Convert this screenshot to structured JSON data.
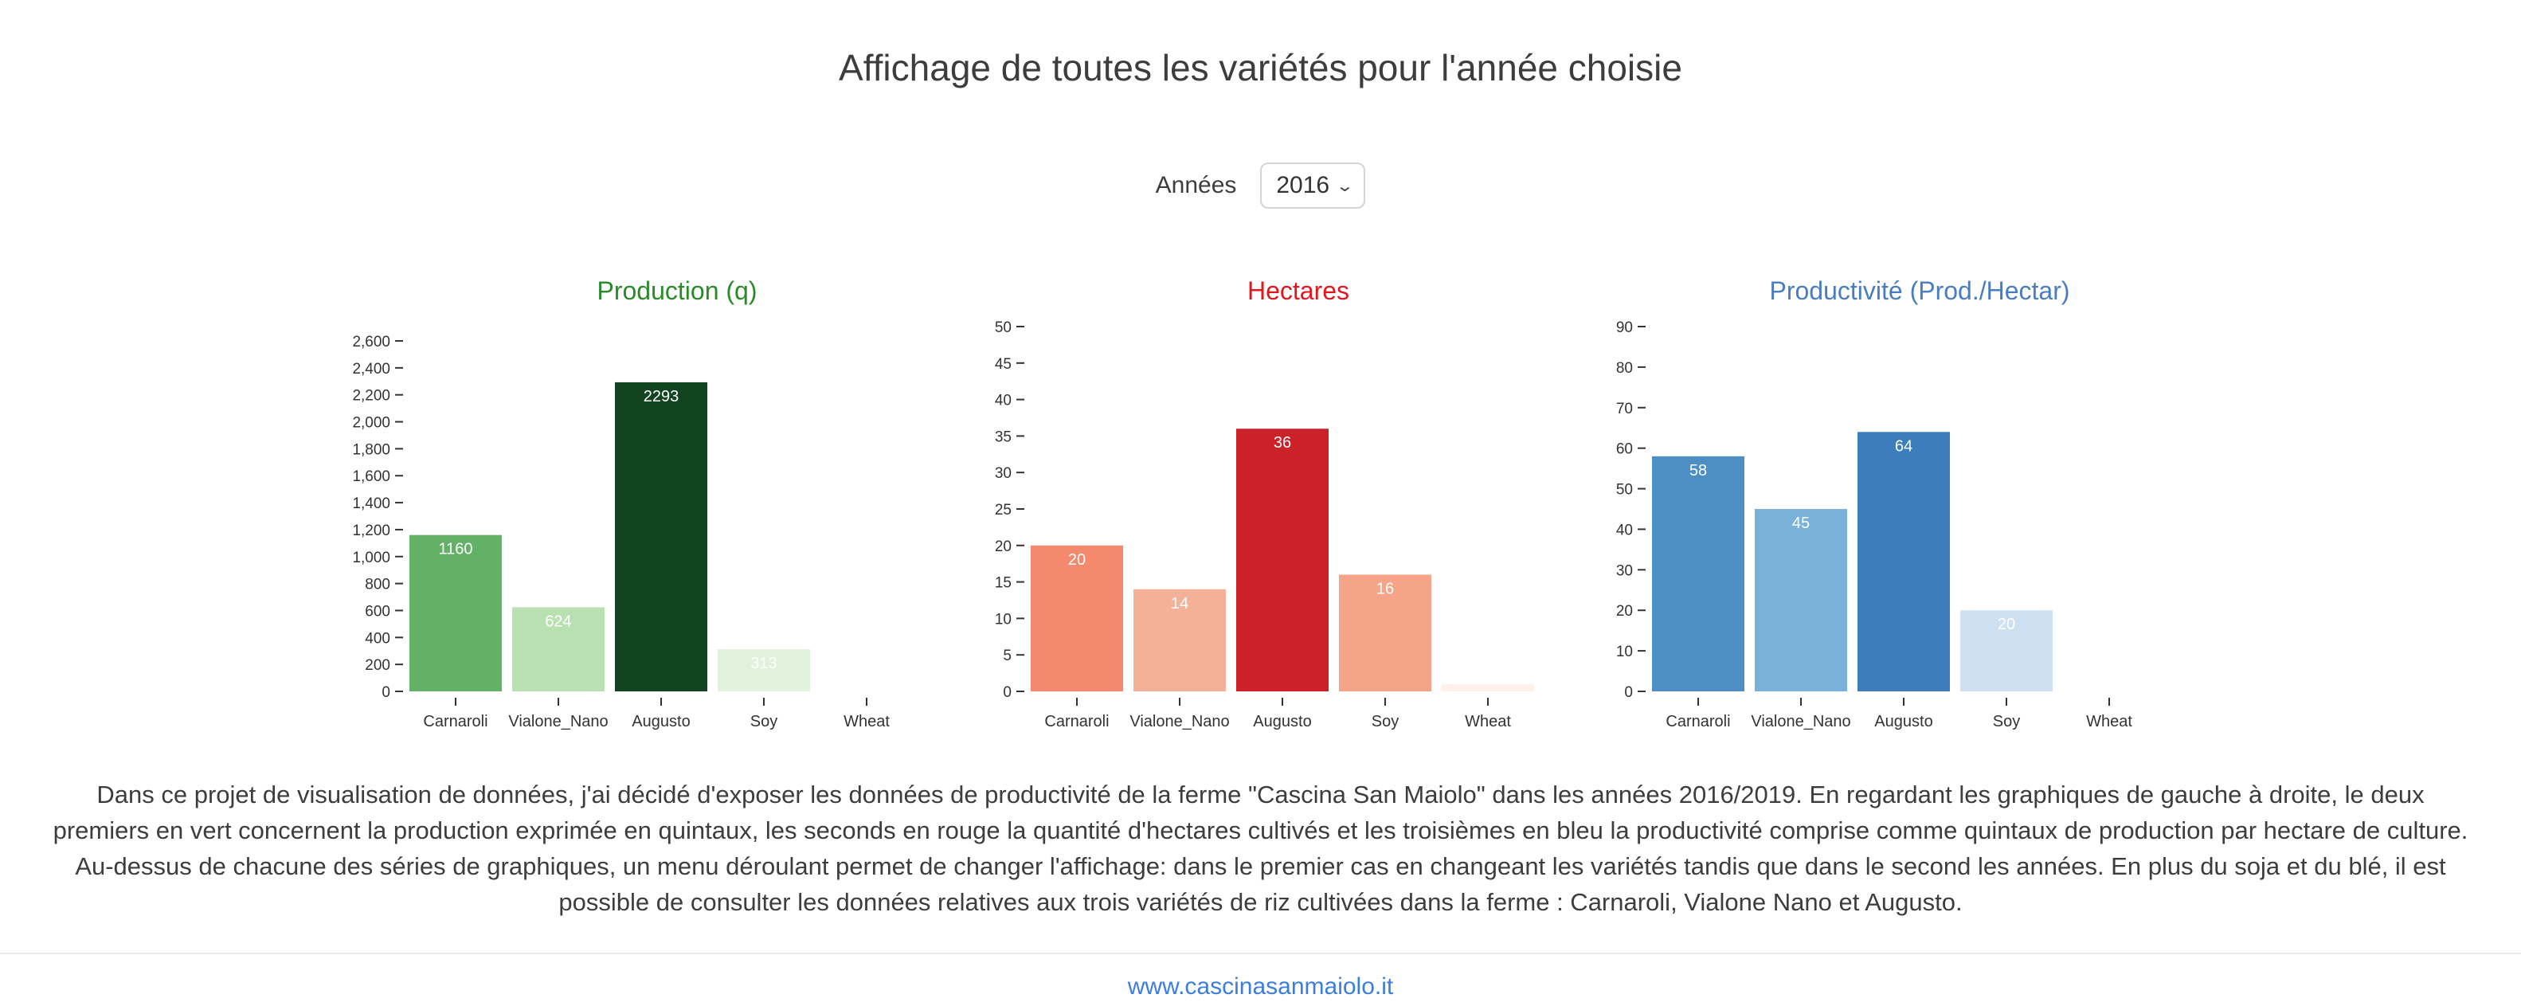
{
  "page": {
    "title": "Affichage de toutes les variétés pour l'année choisie",
    "year_label": "Années",
    "year_selected": "2016",
    "description": "Dans ce projet de visualisation de données, j'ai décidé d'exposer les données de productivité de la ferme \"Cascina San Maiolo\" dans les années 2016/2019. En regardant les graphiques de gauche à droite, le deux premiers en vert concernent la production exprimée en quintaux, les seconds en rouge la quantité d'hectares cultivés et les troisièmes en bleu la productivité comprise comme quintaux de production par hectare de culture. Au-dessus de chacune des séries de graphiques, un menu déroulant permet de changer l'affichage: dans le premier cas en changeant les variétés tandis que dans le second les années. En plus du soja et du blé, il est possible de consulter les données relatives aux trois variétés de riz cultivées dans la ferme : Carnaroli, Vialone Nano et Augusto.",
    "footer_link": "www.cascinasanmaiolo.it"
  },
  "chart_data": [
    {
      "type": "bar",
      "title": "Production (q)",
      "title_color": "#2a8a2a",
      "categories": [
        "Carnaroli",
        "Vialone_Nano",
        "Augusto",
        "Soy",
        "Wheat"
      ],
      "values": [
        1160,
        624,
        2293,
        313,
        0
      ],
      "labels": [
        "1160",
        "624",
        "2293",
        "313",
        ""
      ],
      "bar_colors": [
        "#63b167",
        "#b8e0b0",
        "#124421",
        "#e1f2dc",
        "#f5fbf3"
      ],
      "yticks": [
        "0",
        "200",
        "400",
        "600",
        "800",
        "1,000",
        "1,200",
        "1,400",
        "1,600",
        "1,800",
        "2,000",
        "2,200",
        "2,400",
        "2,600"
      ],
      "ylim": [
        0,
        2600
      ],
      "grid": false
    },
    {
      "type": "bar",
      "title": "Hectares",
      "title_color": "#e0181d",
      "categories": [
        "Carnaroli",
        "Vialone_Nano",
        "Augusto",
        "Soy",
        "Wheat"
      ],
      "values": [
        20,
        14,
        36,
        16,
        1
      ],
      "labels": [
        "20",
        "14",
        "36",
        "16",
        ""
      ],
      "bar_colors": [
        "#f4896d",
        "#f5b198",
        "#cb2128",
        "#f6a488",
        "#fff0ea"
      ],
      "yticks": [
        "0",
        "5",
        "10",
        "15",
        "20",
        "25",
        "30",
        "35",
        "40",
        "45",
        "50"
      ],
      "ylim": [
        0,
        50
      ],
      "grid": false
    },
    {
      "type": "bar",
      "title": "Productivité (Prod./Hectar)",
      "title_color": "#4a7dbf",
      "categories": [
        "Carnaroli",
        "Vialone_Nano",
        "Augusto",
        "Soy",
        "Wheat"
      ],
      "values": [
        58,
        45,
        64,
        20,
        0
      ],
      "labels": [
        "58",
        "45",
        "64",
        "20",
        ""
      ],
      "bar_colors": [
        "#4d8fc5",
        "#7ab1d9",
        "#3d7dbc",
        "#cfe0f2",
        "#f6f9fd"
      ],
      "yticks": [
        "0",
        "10",
        "20",
        "30",
        "40",
        "50",
        "60",
        "70",
        "80",
        "90"
      ],
      "ylim": [
        0,
        90
      ],
      "grid": false
    }
  ]
}
